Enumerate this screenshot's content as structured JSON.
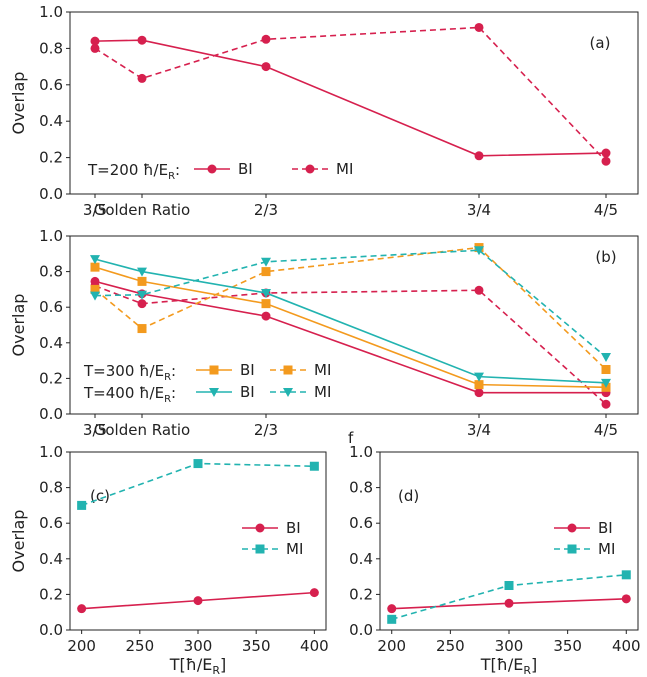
{
  "colors": {
    "bi": "#d6204e",
    "mi": "#d6204e",
    "bi300": "#f39a1e",
    "bi400": "#22b3b0"
  },
  "chart_data": [
    {
      "panel": "(a)",
      "type": "line",
      "ylabel": "Overlap",
      "ylim": [
        0,
        1.0
      ],
      "yticks": [
        "0.0",
        "0.2",
        "0.4",
        "0.6",
        "0.8",
        "1.0"
      ],
      "xticks": [
        "3/5",
        "Golden Ratio",
        "2/3",
        "3/4",
        "4/5"
      ],
      "x": [
        0.6,
        0.618,
        0.6667,
        0.75,
        0.8
      ],
      "legend_prefix": "T=200 ħ/E",
      "legend_prefix_sub": "R",
      "legend_prefix_suffix": ":",
      "series": [
        {
          "name": "BI",
          "color": "#d6204e",
          "dash": false,
          "marker": "circle",
          "values": [
            0.84,
            0.845,
            0.7,
            0.21,
            0.225
          ]
        },
        {
          "name": "MI",
          "color": "#d6204e",
          "dash": true,
          "marker": "circle",
          "values": [
            0.8,
            0.635,
            0.85,
            0.915,
            0.18
          ]
        }
      ]
    },
    {
      "panel": "(b)",
      "type": "line",
      "ylabel": "Overlap",
      "ylim": [
        0,
        1.0
      ],
      "yticks": [
        "0.0",
        "0.2",
        "0.4",
        "0.6",
        "0.8",
        "1.0"
      ],
      "xticks": [
        "3/5",
        "Golden Ratio",
        "2/3",
        "3/4",
        "4/5"
      ],
      "x": [
        0.6,
        0.618,
        0.6667,
        0.75,
        0.8
      ],
      "legend_rows": [
        {
          "prefix": "T=300 ħ/E",
          "sub": "R",
          "suffix": ":"
        },
        {
          "prefix": "T=400 ħ/E",
          "sub": "R",
          "suffix": ":"
        }
      ],
      "series": [
        {
          "name": "",
          "color": "#d6204e",
          "dash": false,
          "marker": "circle",
          "values": [
            0.745,
            0.675,
            0.55,
            0.12,
            0.12
          ]
        },
        {
          "name": "",
          "color": "#d6204e",
          "dash": true,
          "marker": "circle",
          "values": [
            0.72,
            0.62,
            0.68,
            0.695,
            0.055
          ]
        },
        {
          "name": "BI",
          "color": "#f39a1e",
          "dash": false,
          "marker": "square",
          "values": [
            0.825,
            0.745,
            0.62,
            0.165,
            0.15
          ]
        },
        {
          "name": "MI",
          "color": "#f39a1e",
          "dash": true,
          "marker": "square",
          "values": [
            0.7,
            0.48,
            0.8,
            0.935,
            0.25
          ]
        },
        {
          "name": "BI",
          "color": "#22b3b0",
          "dash": false,
          "marker": "triangle",
          "values": [
            0.87,
            0.8,
            0.68,
            0.21,
            0.175
          ]
        },
        {
          "name": "MI",
          "color": "#22b3b0",
          "dash": true,
          "marker": "triangle",
          "values": [
            0.665,
            0.67,
            0.855,
            0.92,
            0.32
          ]
        }
      ]
    },
    {
      "panel": "(c)",
      "type": "line",
      "ylabel": "Overlap",
      "xlabel": "T[ħ/E",
      "xlabel_sub": "R",
      "xlabel_suffix": "]",
      "xlim": [
        190,
        410
      ],
      "ylim": [
        0,
        1.0
      ],
      "yticks": [
        "0.0",
        "0.2",
        "0.4",
        "0.6",
        "0.8",
        "1.0"
      ],
      "xticks": [
        "200",
        "250",
        "300",
        "350",
        "400"
      ],
      "x": [
        200,
        300,
        400
      ],
      "series": [
        {
          "name": "BI",
          "color": "#d6204e",
          "dash": false,
          "marker": "circle",
          "values": [
            0.12,
            0.165,
            0.21
          ]
        },
        {
          "name": "MI",
          "color": "#22b3b0",
          "dash": true,
          "marker": "square",
          "values": [
            0.7,
            0.935,
            0.92
          ]
        }
      ]
    },
    {
      "panel": "(d)",
      "type": "line",
      "xlabel": "T[ħ/E",
      "xlabel_sub": "R",
      "xlabel_suffix": "]",
      "xlim": [
        190,
        410
      ],
      "ylim": [
        0,
        1.0
      ],
      "yticks": [
        "0.0",
        "0.2",
        "0.4",
        "0.6",
        "0.8",
        "1.0"
      ],
      "xticks": [
        "200",
        "250",
        "300",
        "350",
        "400"
      ],
      "x": [
        200,
        300,
        400
      ],
      "stray_text": "f",
      "series": [
        {
          "name": "BI",
          "color": "#d6204e",
          "dash": false,
          "marker": "circle",
          "values": [
            0.12,
            0.15,
            0.175
          ]
        },
        {
          "name": "MI",
          "color": "#22b3b0",
          "dash": true,
          "marker": "square",
          "values": [
            0.06,
            0.25,
            0.31
          ]
        }
      ]
    }
  ]
}
